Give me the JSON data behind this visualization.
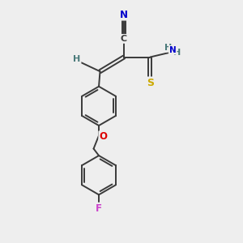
{
  "background_color": "#eeeeee",
  "bond_color": "#3a3a3a",
  "atom_colors": {
    "N": "#0000cc",
    "O": "#dd0000",
    "S": "#ccaa00",
    "F": "#cc44cc",
    "H": "#4a7a7a",
    "C": "#3a3a3a"
  },
  "figsize": [
    3.0,
    3.0
  ],
  "dpi": 100
}
